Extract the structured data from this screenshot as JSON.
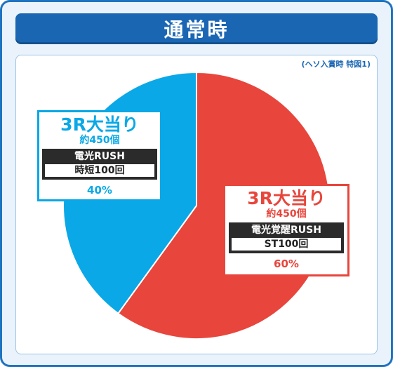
{
  "header": {
    "title": "通常時"
  },
  "note": "(ヘソ入賞時 特図1)",
  "chart_data": {
    "type": "pie",
    "slices": [
      {
        "label": "3R大当り",
        "sub": "約450個",
        "mode": "電光覚醒RUSH",
        "detail": "ST100回",
        "value": 60,
        "percent_label": "60%",
        "color": "#e8453c"
      },
      {
        "label": "3R大当り",
        "sub": "約450個",
        "mode": "電光RUSH",
        "detail": "時短100回",
        "value": 40,
        "percent_label": "40%",
        "color": "#0aa8e6"
      }
    ]
  }
}
